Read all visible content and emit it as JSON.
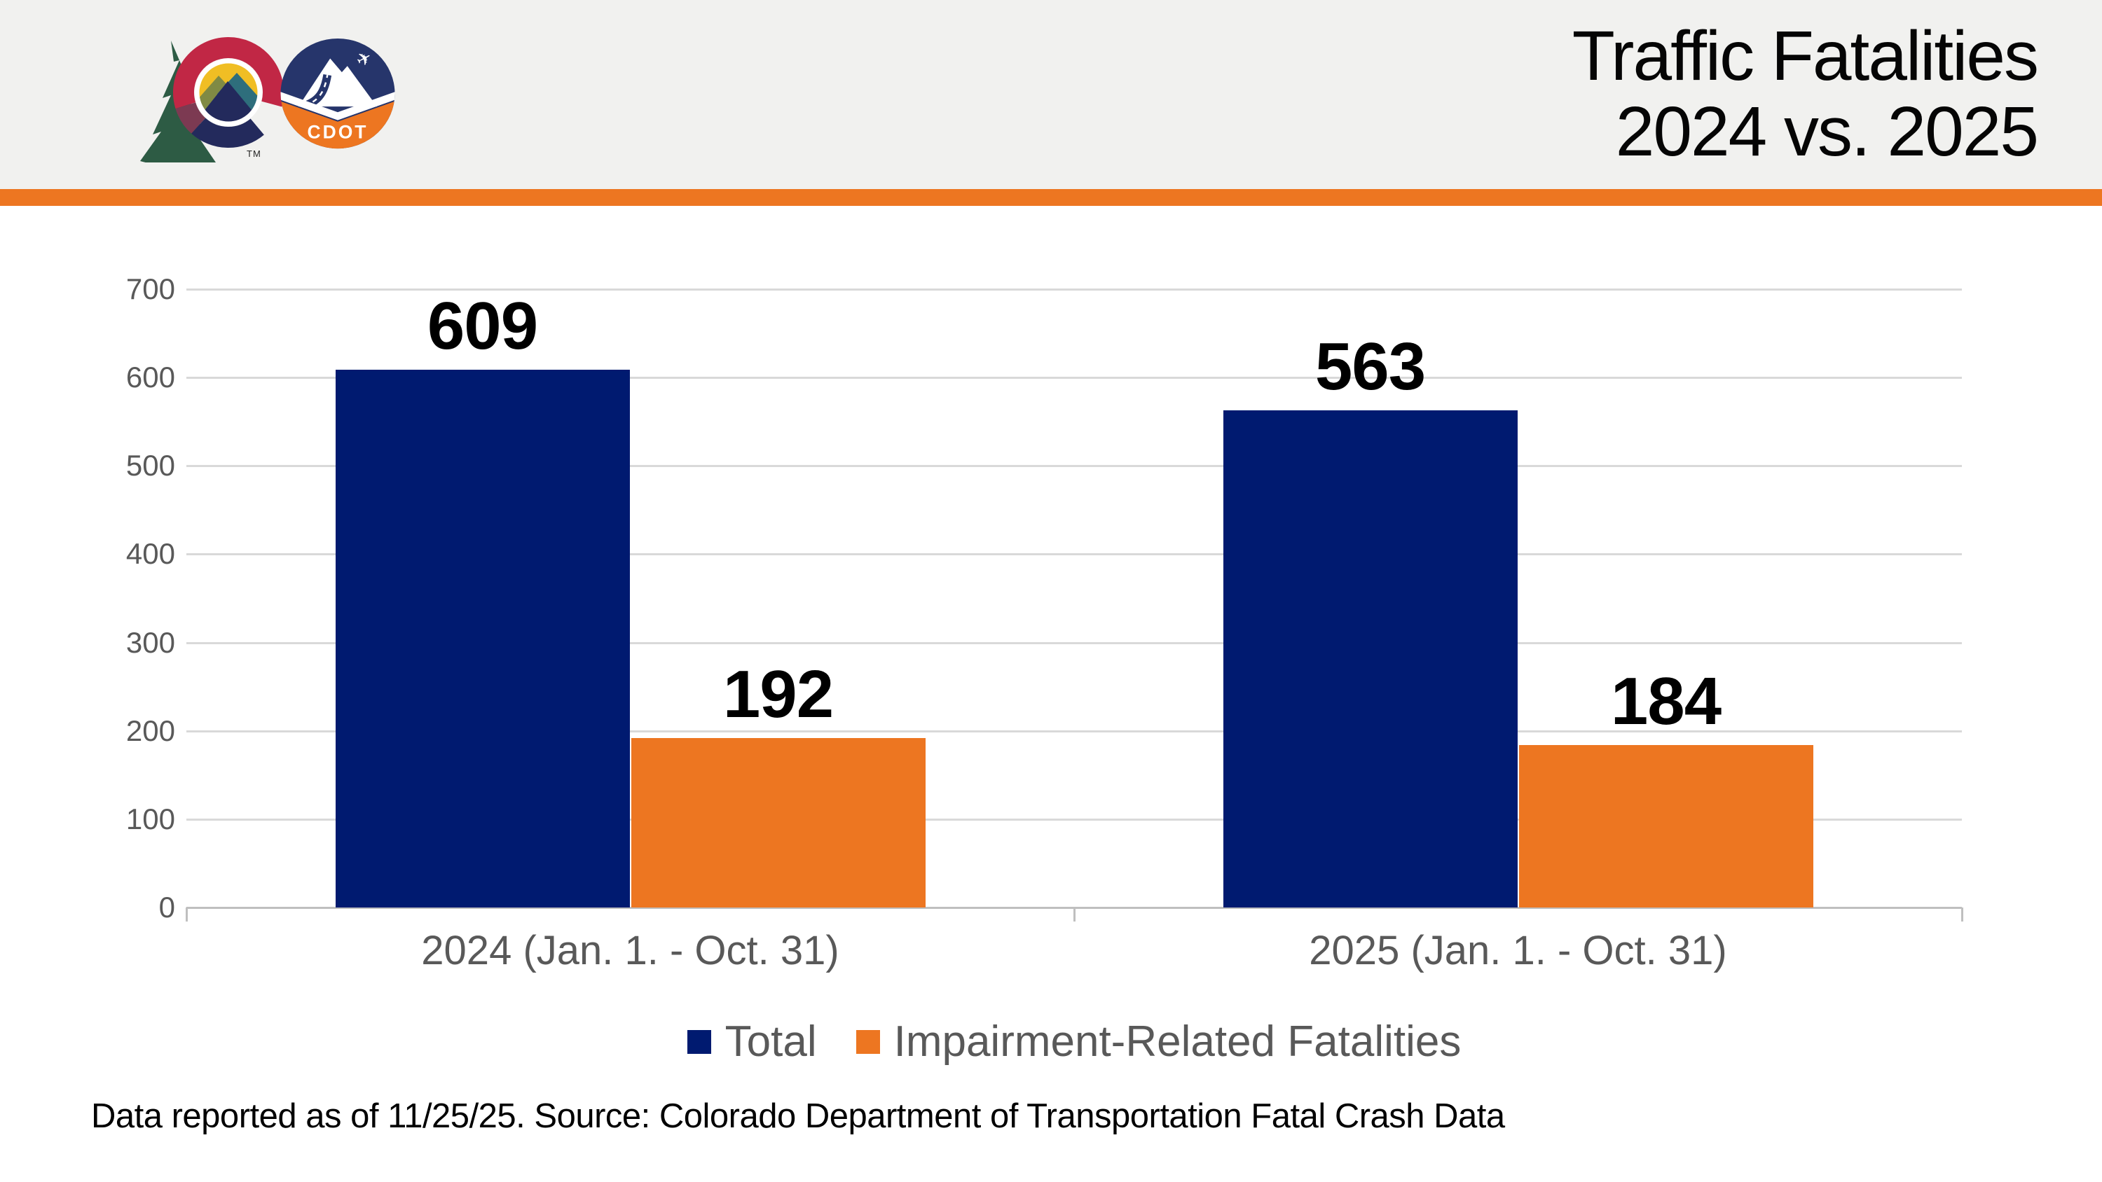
{
  "header": {
    "title_line1": "Traffic Fatalities",
    "title_line2": "2024 vs. 2025",
    "state_logo_trademark": "TM",
    "cdot_logo_text": "CDOT"
  },
  "colors": {
    "accent_orange": "#ED7621",
    "navy": "#001A70",
    "header_bg": "#F1F1EF",
    "gridline": "#D9D9D9",
    "axis_line": "#BFBFBF",
    "label_gray": "#595959"
  },
  "chart_data": {
    "type": "bar",
    "categories": [
      "2024 (Jan. 1. - Oct. 31)",
      "2025 (Jan. 1. - Oct. 31)"
    ],
    "series": [
      {
        "name": "Total",
        "values": [
          609,
          563
        ],
        "color": "#001A70"
      },
      {
        "name": "Impairment-Related Fatalities",
        "values": [
          192,
          184
        ],
        "color": "#ED7621"
      }
    ],
    "title": "",
    "xlabel": "",
    "ylabel": "",
    "ylim": [
      0,
      700
    ],
    "yticks": [
      0,
      100,
      200,
      300,
      400,
      500,
      600,
      700
    ],
    "grid": true,
    "legend_position": "bottom",
    "data_labels": true
  },
  "footer": {
    "note": "Data reported as of 11/25/25. Source: Colorado Department of Transportation Fatal Crash Data"
  }
}
